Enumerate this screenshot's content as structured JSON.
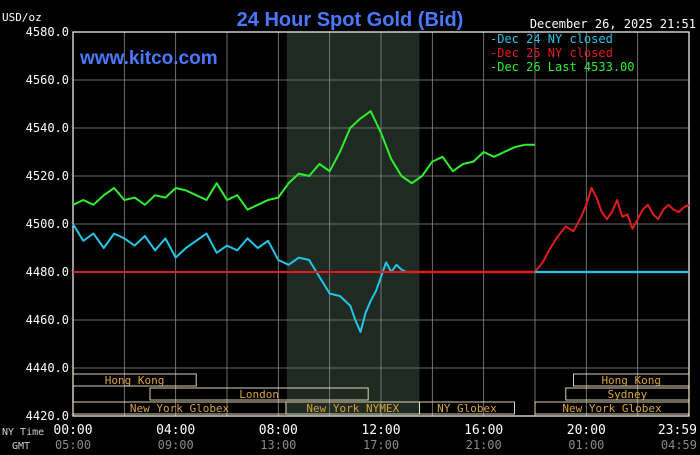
{
  "chart_data": {
    "type": "line",
    "title": "24 Hour Spot Gold (Bid)",
    "ylabel": "USD/oz",
    "watermark": "www.kitco.com",
    "timestamp": "December 26, 2025 21:51",
    "ylim": [
      4420,
      4580
    ],
    "yticks": [
      "4580.0",
      "4560.0",
      "4540.0",
      "4520.0",
      "4500.0",
      "4480.0",
      "4460.0",
      "4440.0",
      "4420.0"
    ],
    "xlim": [
      0,
      24
    ],
    "x_ny_label": "NY Time",
    "x_gmt_label": "GMT",
    "x_ny_ticks": [
      "00:00",
      "04:00",
      "08:00",
      "12:00",
      "16:00",
      "20:00",
      "23:59"
    ],
    "x_gmt_ticks": [
      "05:00",
      "09:00",
      "13:00",
      "17:00",
      "21:00",
      "01:00",
      "04:59"
    ],
    "grid": true,
    "legend_position": "top-right",
    "shaded_session": {
      "start": 8.33,
      "end": 13.5
    },
    "baseline": 4480,
    "colors": {
      "dec24": "#22c6e6",
      "dec25": "#e21b1b",
      "dec26": "#2ef02e",
      "title": "#4a78ff",
      "axis": "#ffffff",
      "grid": "#8a8a8a",
      "session_text": "#d9a23c",
      "session_bar": "#f4e6c0"
    },
    "series": [
      {
        "name": "Dec 24 NY closed",
        "color": "#22c6e6",
        "x": [
          0,
          0.4,
          0.8,
          1.2,
          1.6,
          2,
          2.4,
          2.8,
          3.2,
          3.6,
          4,
          4.4,
          4.8,
          5.2,
          5.6,
          6,
          6.4,
          6.8,
          7.2,
          7.6,
          8,
          8.4,
          8.8,
          9.2,
          9.6,
          10,
          10.4,
          10.8,
          11,
          11.2,
          11.4,
          11.6,
          11.8,
          12,
          12.2,
          12.4,
          12.6,
          12.8,
          13
        ],
        "values": [
          4500,
          4493,
          4496,
          4490,
          4496,
          4494,
          4491,
          4495,
          4489,
          4494,
          4486,
          4490,
          4493,
          4496,
          4488,
          4491,
          4489,
          4494,
          4490,
          4493,
          4485,
          4483,
          4486,
          4485,
          4478,
          4471,
          4470,
          4466,
          4460,
          4455,
          4463,
          4468,
          4472,
          4478,
          4484,
          4480,
          4483,
          4481,
          4480
        ]
      },
      {
        "name": "Dec 25 NY closed",
        "color": "#e21b1b",
        "x": [
          0,
          1,
          2,
          3,
          4,
          5,
          6,
          7,
          8,
          9,
          10,
          11,
          12,
          13,
          14,
          15,
          16,
          17,
          18,
          18.3,
          18.6,
          18.9,
          19.2,
          19.5,
          19.8,
          20,
          20.2,
          20.4,
          20.6,
          20.8,
          21,
          21.2,
          21.4,
          21.6,
          21.8,
          22,
          22.2,
          22.4,
          22.6,
          22.8,
          23,
          23.2,
          23.4,
          23.6,
          23.8,
          24
        ],
        "values": [
          4480,
          4480,
          4480,
          4480,
          4480,
          4480,
          4480,
          4480,
          4480,
          4480,
          4480,
          4480,
          4480,
          4480,
          4480,
          4480,
          4480,
          4480,
          4480,
          4484,
          4490,
          4495,
          4499,
          4497,
          4503,
          4508,
          4515,
          4511,
          4505,
          4502,
          4505,
          4510,
          4503,
          4504,
          4498,
          4502,
          4506,
          4508,
          4504,
          4502,
          4506,
          4508,
          4506,
          4505,
          4507,
          4508
        ]
      },
      {
        "name": "Dec 26 Last 4533.00",
        "color": "#2ef02e",
        "x": [
          0,
          0.4,
          0.8,
          1.2,
          1.6,
          2,
          2.4,
          2.8,
          3.2,
          3.6,
          4,
          4.4,
          4.8,
          5.2,
          5.6,
          6,
          6.4,
          6.8,
          7.2,
          7.6,
          8,
          8.4,
          8.8,
          9.2,
          9.6,
          10,
          10.4,
          10.8,
          11.2,
          11.6,
          12,
          12.4,
          12.8,
          13.2,
          13.6,
          14,
          14.4,
          14.8,
          15.2,
          15.6,
          16,
          16.4,
          16.8,
          17.2,
          17.6,
          18
        ],
        "values": [
          4508,
          4510,
          4508,
          4512,
          4515,
          4510,
          4511,
          4508,
          4512,
          4511,
          4515,
          4514,
          4512,
          4510,
          4517,
          4510,
          4512,
          4506,
          4508,
          4510,
          4511,
          4517,
          4521,
          4520,
          4525,
          4522,
          4530,
          4540,
          4544,
          4547,
          4538,
          4527,
          4520,
          4517,
          4520,
          4526,
          4528,
          4522,
          4525,
          4526,
          4530,
          4528,
          4530,
          4532,
          4533,
          4533
        ]
      }
    ]
  },
  "sessions": {
    "row1": [
      {
        "label": "Hong Kong",
        "start": 0,
        "end": 4.8
      },
      {
        "label": "Hong Kong",
        "start": 19.5,
        "end": 24
      }
    ],
    "row2": [
      {
        "label": "London",
        "start": 3,
        "end": 11.5
      },
      {
        "label": "Sydney",
        "start": 19.2,
        "end": 24
      }
    ],
    "row3": [
      {
        "label": "New York Globex",
        "start": 0,
        "end": 8.3
      },
      {
        "label": "New York NYMEX",
        "start": 8.3,
        "end": 13.5
      },
      {
        "label": "NY Globex",
        "start": 13.5,
        "end": 17.2
      },
      {
        "label": "New York Globex",
        "start": 18,
        "end": 24
      }
    ]
  }
}
